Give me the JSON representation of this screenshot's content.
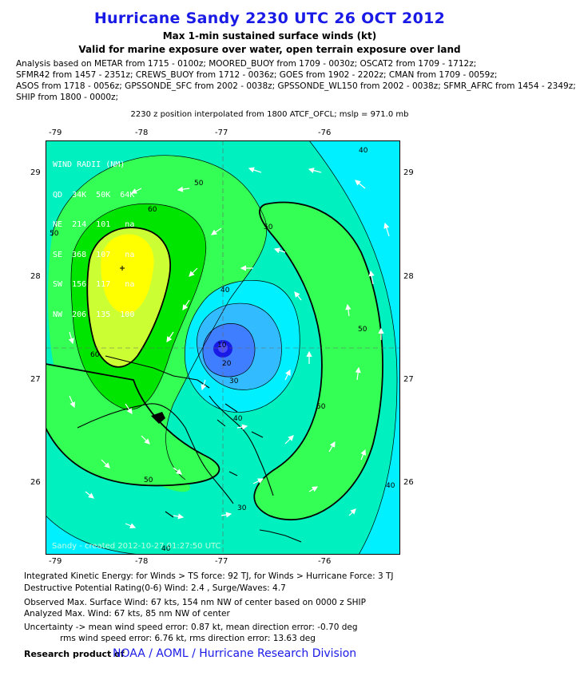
{
  "header": {
    "title": "Hurricane Sandy 2230 UTC 26 OCT 2012",
    "subtitle1": "Max 1-min sustained surface winds (kt)",
    "subtitle2": "Valid for marine exposure over water, open terrain exposure over land"
  },
  "sources": [
    "Analysis based on METAR from 1715 - 0100z; MOORED_BUOY from 1709 - 0030z; OSCAT2 from 1709 - 1712z;",
    "SFMR42 from 1457 - 2351z; CREWS_BUOY from 1712 - 0036z; GOES from 1902 - 2202z; CMAN from 1709 - 0059z;",
    "ASOS from 1718 - 0056z; GPSSONDE_SFC from 2002 - 0038z; GPSSONDE_WL150 from 2002 - 0038z; SFMR_AFRC from 1454 - 2349z;",
    "SHIP from 1800 - 0000z;"
  ],
  "position_note": "2230 z position interpolated from 1800 ATCF_OFCL; mslp = 971.0 mb",
  "map": {
    "lon_ticks": [
      "-79",
      "-78",
      "-77",
      "-76"
    ],
    "lat_ticks": [
      "29",
      "28",
      "27",
      "26"
    ],
    "wind_radii": {
      "title": "WIND RADII (NM)",
      "header": "QD  34K  50K  64K",
      "rows": [
        "NE  214  101   na",
        "SE  368  107   na",
        "SW  156  117   na",
        "NW  206  135  100"
      ]
    },
    "contour_labels": [
      "50",
      "50",
      "60",
      "40",
      "50",
      "40",
      "30",
      "20",
      "10",
      "40",
      "50",
      "50",
      "50",
      "40",
      "30",
      "60",
      "40"
    ],
    "watermark": "Sandy  -  created  2012-10-27 01:27:50 UTC",
    "colors": {
      "c10": "#1a1ae6",
      "c20": "#3f7fff",
      "c30": "#33bbff",
      "c40": "#00f0ff",
      "c50": "#00f0c0",
      "c60": "#33ff55",
      "c70": "#00e500",
      "c80": "#ccff33",
      "c90": "#ffff00"
    }
  },
  "footer": {
    "ike": "Integrated Kinetic Energy: for Winds > TS force: 92 TJ, for Winds > Hurricane Force: 3 TJ",
    "dpr": "Destructive Potential Rating(0-6)   Wind: 2.4 , Surge/Waves: 4.7",
    "observed": "Observed Max. Surface Wind: 67 kts, 154 nm NW of center based on 0000 z SHIP",
    "analyzed": "Analyzed Max. Wind: 67 kts, 85 nm  NW of center",
    "uncertainty1": "Uncertainty -> mean wind speed error: 0.87 kt, mean direction error:  -0.70 deg",
    "uncertainty2": "rms wind speed error: 6.76 kt, rms direction error: 13.63 deg",
    "research_label": "Research product of",
    "org_links": "NOAA  /  AOML  /  Hurricane Research Division"
  }
}
